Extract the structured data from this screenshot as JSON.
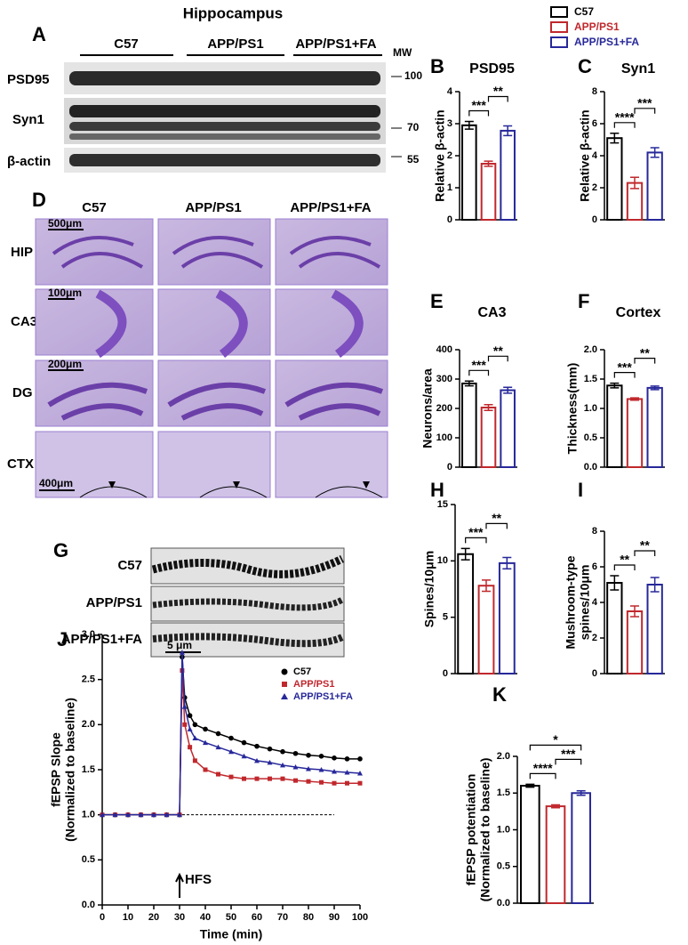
{
  "figure": {
    "panel_letters": [
      "A",
      "B",
      "C",
      "D",
      "E",
      "F",
      "G",
      "H",
      "I",
      "J",
      "K"
    ],
    "legend": [
      {
        "name": "C57",
        "color": "#000000"
      },
      {
        "name": "APP/PS1",
        "color": "#c0282d"
      },
      {
        "name": "APP/PS1+FA",
        "color": "#27289a"
      }
    ],
    "blot": {
      "title": "Hippocampus",
      "groups": [
        "C57",
        "APP/PS1",
        "APP/PS1+FA"
      ],
      "mw_label": "MW",
      "rows": [
        "PSD95",
        "Syn1",
        "β-actin"
      ],
      "mw_markers": [
        "100",
        "70",
        "55"
      ]
    },
    "histology": {
      "columns": [
        "C57",
        "APP/PS1",
        "APP/PS1+FA"
      ],
      "rows": [
        "HIP",
        "CA3",
        "DG",
        "CTX"
      ],
      "scale_bars": [
        "500μm",
        "100μm",
        "200μm",
        "400μm"
      ]
    },
    "dendrites": {
      "rows": [
        "C57",
        "APP/PS1",
        "APP/PS1+FA"
      ],
      "scale_bar": "5 μm"
    }
  },
  "chart_data": [
    {
      "type": "bar",
      "title": "PSD95",
      "y_label": "Relative β-actin",
      "categories": [
        null,
        null,
        null
      ],
      "values": [
        2.95,
        1.75,
        2.78
      ],
      "errors": [
        0.12,
        0.08,
        0.15
      ],
      "colors": [
        "#000000",
        "#c0282d",
        "#27289a"
      ],
      "ylim": [
        0,
        4
      ],
      "yticks": [
        0,
        1,
        2,
        3,
        4
      ],
      "significance": [
        "***",
        "**"
      ]
    },
    {
      "type": "bar",
      "title": "Syn1",
      "y_label": "Relative β-actin",
      "categories": [
        null,
        null,
        null
      ],
      "values": [
        5.1,
        2.3,
        4.2
      ],
      "errors": [
        0.3,
        0.35,
        0.3
      ],
      "colors": [
        "#000000",
        "#c0282d",
        "#27289a"
      ],
      "ylim": [
        0,
        8
      ],
      "yticks": [
        0,
        2,
        4,
        6,
        8
      ],
      "significance": [
        "****",
        "***"
      ]
    },
    {
      "type": "bar",
      "title": "CA3",
      "y_label": "Neurons/area",
      "categories": [
        null,
        null,
        null
      ],
      "values": [
        285,
        203,
        262
      ],
      "errors": [
        8,
        10,
        10
      ],
      "colors": [
        "#000000",
        "#c0282d",
        "#27289a"
      ],
      "ylim": [
        0,
        400
      ],
      "yticks": [
        0,
        100,
        200,
        300,
        400
      ],
      "significance": [
        "***",
        "**"
      ]
    },
    {
      "type": "bar",
      "title": "Cortex",
      "y_label": "Thickness(mm)",
      "categories": [
        null,
        null,
        null
      ],
      "values": [
        1.39,
        1.16,
        1.35
      ],
      "errors": [
        0.04,
        0.02,
        0.03
      ],
      "colors": [
        "#000000",
        "#c0282d",
        "#27289a"
      ],
      "ylim": [
        0,
        2
      ],
      "yticks": [
        {
          "value": 0,
          "label": "0.0"
        },
        {
          "value": 0.5,
          "label": "0.5"
        },
        {
          "value": 1,
          "label": "1.0"
        },
        {
          "value": 1.5,
          "label": "1.5"
        },
        {
          "value": 2,
          "label": "2.0"
        }
      ],
      "significance": [
        "***",
        "**"
      ]
    },
    {
      "type": "bar",
      "y_label": "Spines/10μm",
      "categories": [
        null,
        null,
        null
      ],
      "values": [
        10.6,
        7.8,
        9.8
      ],
      "errors": [
        0.5,
        0.5,
        0.5
      ],
      "colors": [
        "#000000",
        "#c0282d",
        "#27289a"
      ],
      "ylim": [
        0,
        15
      ],
      "yticks": [
        0,
        5,
        10,
        15
      ],
      "significance": [
        "***",
        "**"
      ]
    },
    {
      "type": "bar",
      "y_label": [
        "Mushroom-type",
        "spines/10μm"
      ],
      "categories": [
        null,
        null,
        null
      ],
      "values": [
        5.1,
        3.5,
        5.0
      ],
      "errors": [
        0.4,
        0.3,
        0.4
      ],
      "colors": [
        "#000000",
        "#c0282d",
        "#27289a"
      ],
      "ylim": [
        0,
        8
      ],
      "yticks": [
        0,
        2,
        4,
        6,
        8
      ],
      "significance": [
        "**",
        "**"
      ]
    },
    {
      "type": "line",
      "x_label": "Time (min)",
      "y_label": [
        "fEPSP Slope",
        "(Normalized to baseline)"
      ],
      "x": [
        0,
        5,
        10,
        15,
        20,
        25,
        30,
        31,
        32,
        34,
        36,
        40,
        45,
        50,
        55,
        60,
        65,
        70,
        75,
        80,
        85,
        90,
        95,
        100
      ],
      "series": [
        {
          "name": "C57",
          "color": "#000000",
          "marker": "circle",
          "values": [
            1.0,
            1.0,
            1.0,
            1.0,
            1.0,
            1.0,
            1.0,
            2.75,
            2.3,
            2.1,
            2.0,
            1.95,
            1.9,
            1.85,
            1.8,
            1.76,
            1.73,
            1.7,
            1.68,
            1.66,
            1.65,
            1.63,
            1.62,
            1.62
          ]
        },
        {
          "name": "APP/PS1",
          "color": "#c0282d",
          "marker": "square",
          "values": [
            1.0,
            1.0,
            1.0,
            1.0,
            1.0,
            1.0,
            1.0,
            2.6,
            2.0,
            1.75,
            1.6,
            1.5,
            1.45,
            1.42,
            1.4,
            1.4,
            1.4,
            1.4,
            1.38,
            1.37,
            1.36,
            1.35,
            1.35,
            1.35
          ]
        },
        {
          "name": "APP/PS1+FA",
          "color": "#27289a",
          "marker": "triangle",
          "values": [
            1.0,
            1.0,
            1.0,
            1.0,
            1.0,
            1.0,
            1.0,
            2.8,
            2.2,
            1.95,
            1.85,
            1.8,
            1.75,
            1.7,
            1.65,
            1.6,
            1.58,
            1.55,
            1.53,
            1.51,
            1.5,
            1.48,
            1.47,
            1.46
          ]
        }
      ],
      "xlim": [
        0,
        100
      ],
      "xticks": [
        0,
        10,
        20,
        30,
        40,
        50,
        60,
        70,
        80,
        90,
        100
      ],
      "ylim": [
        0,
        3
      ],
      "yticks": [
        {
          "value": 0,
          "label": "0.0"
        },
        {
          "value": 0.5,
          "label": "0.5"
        },
        {
          "value": 1,
          "label": "1.0"
        },
        {
          "value": 1.5,
          "label": "1.5"
        },
        {
          "value": 2,
          "label": "2.0"
        },
        {
          "value": 2.5,
          "label": "2.5"
        },
        {
          "value": 3,
          "label": "3.0"
        }
      ],
      "reference_line": {
        "y": 1.0,
        "x": [
          0,
          90
        ]
      },
      "annotation": {
        "text": "HFS",
        "x": 30
      },
      "legend": "upper right"
    },
    {
      "type": "bar",
      "y_label": [
        "fEPSP potentiation",
        "(Normalized to baseline)"
      ],
      "categories": [
        null,
        null,
        null
      ],
      "values": [
        1.6,
        1.32,
        1.5
      ],
      "errors": [
        0.02,
        0.02,
        0.03
      ],
      "colors": [
        "#000000",
        "#c0282d",
        "#27289a"
      ],
      "ylim": [
        0,
        2
      ],
      "yticks": [
        {
          "value": 0,
          "label": "0.0"
        },
        {
          "value": 0.5,
          "label": "0.5"
        },
        {
          "value": 1,
          "label": "1.0"
        },
        {
          "value": 1.5,
          "label": "1.5"
        },
        {
          "value": 2,
          "label": "2.0"
        }
      ],
      "significance": [
        "*",
        "****",
        "***"
      ]
    }
  ]
}
